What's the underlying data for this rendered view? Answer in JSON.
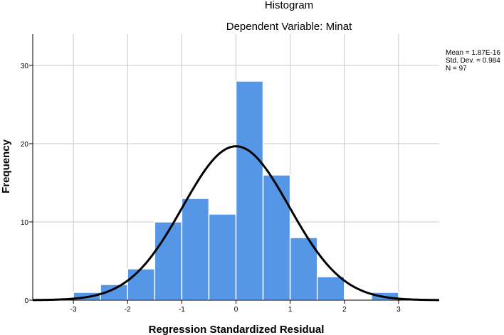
{
  "chart_data": {
    "type": "bar",
    "title": "Histogram",
    "subtitle": "Dependent Variable: Minat",
    "xlabel": "Regression Standardized Residual",
    "ylabel": "Frequency",
    "xlim": [
      -3.75,
      3.75
    ],
    "ylim": [
      0,
      34
    ],
    "x_ticks": [
      -3,
      -2,
      -1,
      0,
      1,
      2,
      3
    ],
    "y_ticks": [
      0,
      10,
      20,
      30
    ],
    "bin_width": 0.5,
    "bins": [
      {
        "start": -3.0,
        "end": -2.5,
        "count": 1
      },
      {
        "start": -2.5,
        "end": -2.0,
        "count": 2
      },
      {
        "start": -2.0,
        "end": -1.5,
        "count": 4
      },
      {
        "start": -1.5,
        "end": -1.0,
        "count": 10
      },
      {
        "start": -1.0,
        "end": -0.5,
        "count": 13
      },
      {
        "start": -0.5,
        "end": 0.0,
        "count": 11
      },
      {
        "start": 0.0,
        "end": 0.5,
        "count": 28
      },
      {
        "start": 0.5,
        "end": 1.0,
        "count": 16
      },
      {
        "start": 1.0,
        "end": 1.5,
        "count": 8
      },
      {
        "start": 1.5,
        "end": 2.0,
        "count": 3
      },
      {
        "start": 2.0,
        "end": 2.5,
        "count": 0
      },
      {
        "start": 2.5,
        "end": 3.0,
        "count": 1
      }
    ],
    "normal_curve": {
      "mean": 1.87e-16,
      "sd": 0.984,
      "n": 97
    },
    "grid": true,
    "bar_color": "#5596e6",
    "curve_color": "#000000"
  },
  "stats": {
    "mean": "Mean = 1.87E-16",
    "std_dev": "Std. Dev. = 0.984",
    "n": "N = 97"
  }
}
